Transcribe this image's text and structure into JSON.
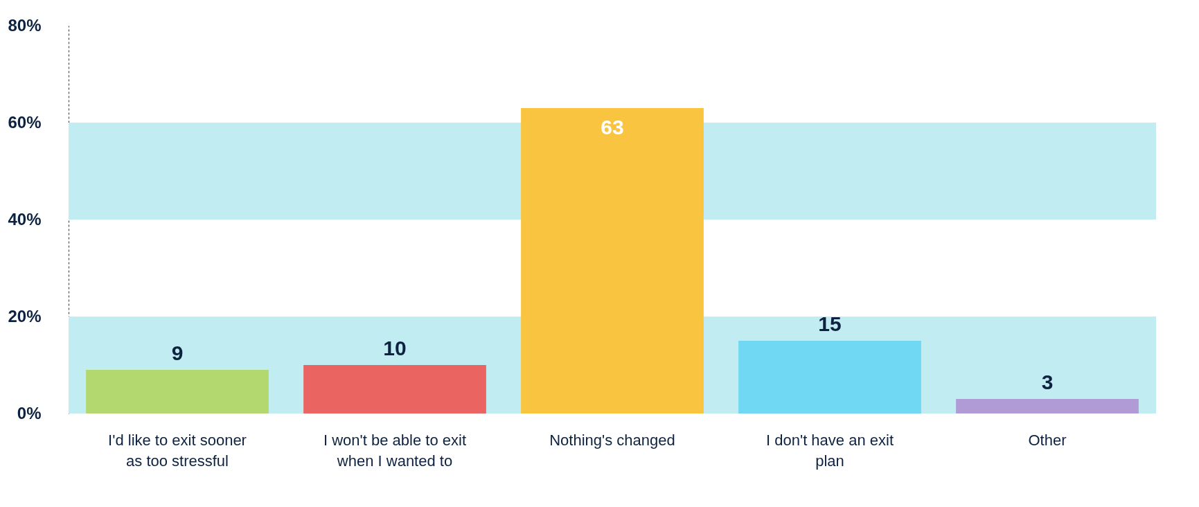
{
  "chart_data": {
    "type": "bar",
    "categories": [
      "I'd like to exit sooner as too stressful",
      "I won't be able to exit when I wanted to",
      "Nothing's changed",
      "I don't have an exit plan",
      "Other"
    ],
    "values": [
      9,
      10,
      63,
      15,
      3
    ],
    "colors": [
      "#b3d870",
      "#ea6462",
      "#f9c540",
      "#70d8f2",
      "#b19bd6"
    ],
    "data_labels": true,
    "ylim": [
      0,
      80
    ],
    "yticks": [
      {
        "value": 0,
        "label": "0%"
      },
      {
        "value": 20,
        "label": "20%"
      },
      {
        "value": 40,
        "label": "40%"
      },
      {
        "value": 60,
        "label": "60%"
      },
      {
        "value": 80,
        "label": "80%"
      }
    ],
    "bands": [
      {
        "axis": "y",
        "from": 0,
        "to": 20,
        "color": "#c1ecf1"
      },
      {
        "axis": "y",
        "from": 40,
        "to": 60,
        "color": "#c1ecf1"
      }
    ],
    "grid": false,
    "legend": false
  }
}
